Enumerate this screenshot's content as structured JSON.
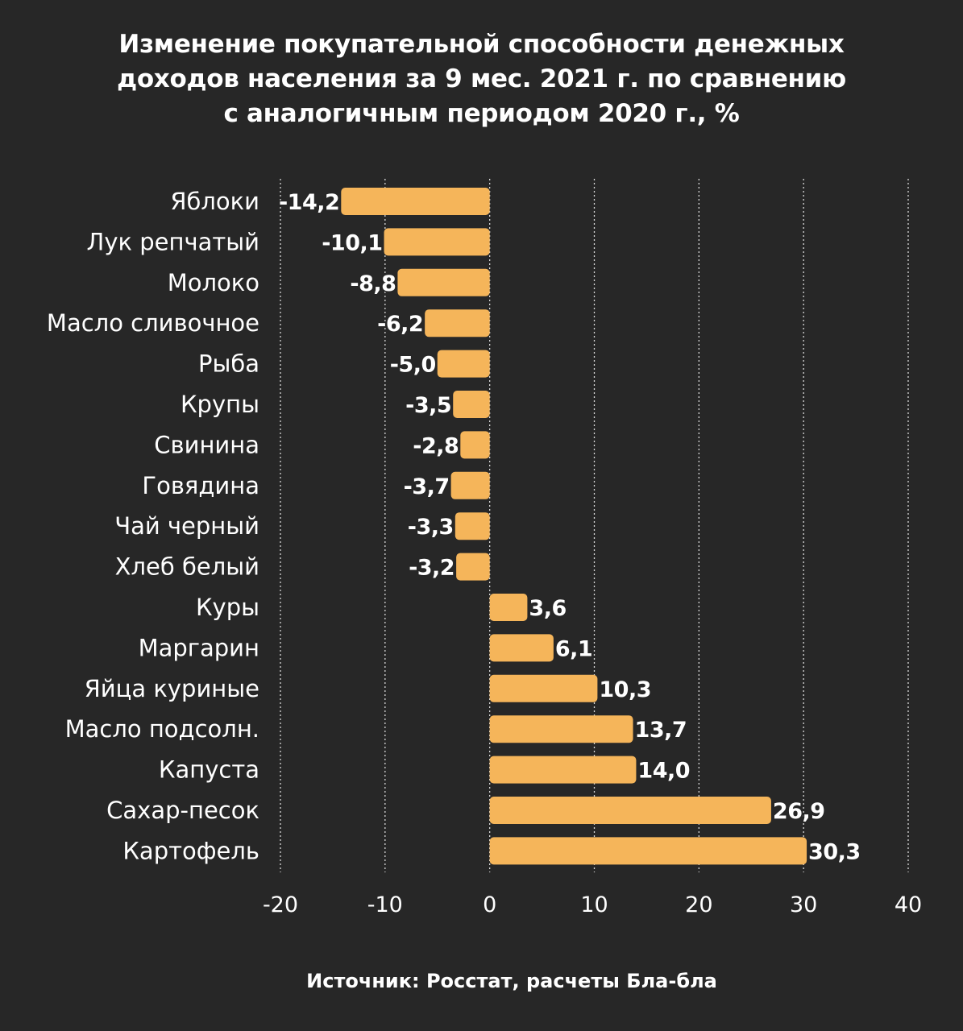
{
  "chart_data": {
    "type": "bar",
    "orientation": "horizontal",
    "title_lines": [
      "Изменение покупательной способности денежных",
      "доходов населения за 9 мес. 2021 г. по сравнению",
      "с аналогичным периодом 2020 г., %"
    ],
    "categories": [
      "Яблоки",
      "Лук репчатый",
      "Молоко",
      "Масло сливочное",
      "Рыба",
      "Крупы",
      "Свинина",
      "Говядина",
      "Чай черный",
      "Хлеб белый",
      "Куры",
      "Маргарин",
      "Яйца куриные",
      "Масло подсолн.",
      "Капуста",
      "Сахар-песок",
      "Картофель"
    ],
    "values": [
      -14.2,
      -10.1,
      -8.8,
      -6.2,
      -5.0,
      -3.5,
      -2.8,
      -3.7,
      -3.3,
      -3.2,
      3.6,
      6.1,
      10.3,
      13.7,
      14.0,
      26.9,
      30.3
    ],
    "value_labels": [
      "-14,2",
      "-10,1",
      "-8,8",
      "-6,2",
      "-5,0",
      "-3,5",
      "-2,8",
      "-3,7",
      "-3,3",
      "-3,2",
      "3,6",
      "6,1",
      "10,3",
      "13,7",
      "14,0",
      "26,9",
      "30,3"
    ],
    "xlim": [
      -20,
      40
    ],
    "xticks": [
      -20,
      -10,
      0,
      10,
      20,
      30,
      40
    ],
    "xtick_labels": [
      "-20",
      "-10",
      "0",
      "10",
      "20",
      "30",
      "40"
    ],
    "grid": "vertical dotted",
    "xlabel": "",
    "ylabel": ""
  },
  "source": "Источник: Росстат, расчеты Бла-бла",
  "colors": {
    "background": "#272727",
    "bar": "#F5B55A",
    "text": "#FFFFFF",
    "grid": "#D8D8D8"
  }
}
